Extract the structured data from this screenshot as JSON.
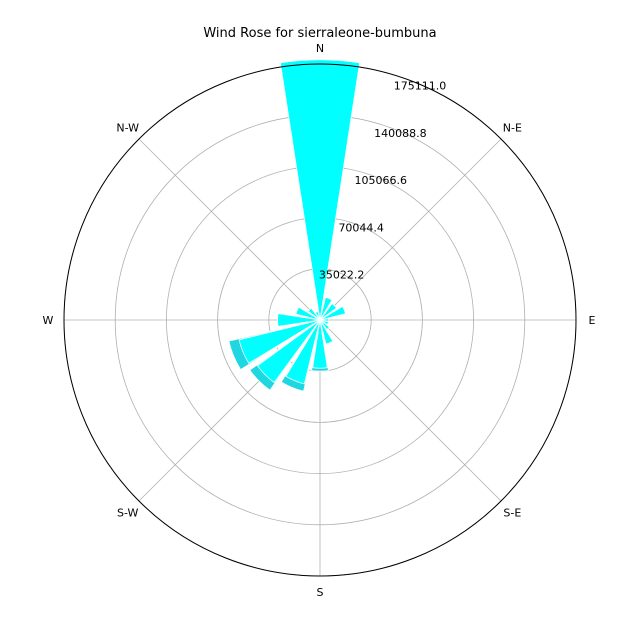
{
  "chart_data": {
    "type": "windrose",
    "title": "Wind Rose for sierraleone-bumbuna",
    "directions": [
      "N",
      "N-E",
      "E",
      "S-E",
      "S",
      "S-W",
      "W",
      "N-W"
    ],
    "radial_ticks": [
      "35022.2",
      "70044.4",
      "105066.6",
      "140088.8",
      "175111.0"
    ],
    "rmax": 175111.0,
    "grid": true,
    "sectors": [
      {
        "angle": 0.0,
        "value": 178000,
        "color": "#00ffff"
      },
      {
        "angle": 22.5,
        "value": 16000,
        "color": "#00ffff"
      },
      {
        "angle": 45.0,
        "value": 14000,
        "color": "#00ffff"
      },
      {
        "angle": 67.5,
        "value": 18000,
        "color": "#00ffff"
      },
      {
        "angle": 90.0,
        "value": 6000,
        "color": "#00ffff"
      },
      {
        "angle": 112.5,
        "value": 6000,
        "color": "#00ffff"
      },
      {
        "angle": 135.0,
        "value": 8000,
        "color": "#00ffff"
      },
      {
        "angle": 157.5,
        "value": 17000,
        "color": "#00ffff"
      },
      {
        "angle": 180.0,
        "value": 33000,
        "color": "#00ffff"
      },
      {
        "angle": 202.5,
        "value": 45000,
        "color": "#00ffff"
      },
      {
        "angle": 225.0,
        "value": 53000,
        "color": "#00ffff"
      },
      {
        "angle": 247.5,
        "value": 57000,
        "color": "#00ffff"
      },
      {
        "angle": 270.0,
        "value": 29000,
        "color": "#00ffff"
      },
      {
        "angle": 292.5,
        "value": 17000,
        "color": "#00ffff"
      },
      {
        "angle": 315.0,
        "value": 10000,
        "color": "#00ffff"
      },
      {
        "angle": 337.5,
        "value": 6000,
        "color": "#00ffff"
      }
    ],
    "bins": [
      {
        "angle": 202.5,
        "value": 50000,
        "color": "#1fd7e0"
      },
      {
        "angle": 225.0,
        "value": 59000,
        "color": "#1fd7e0"
      },
      {
        "angle": 247.5,
        "value": 64000,
        "color": "#1fd7e0"
      },
      {
        "angle": 180.0,
        "value": 35000,
        "color": "#1fd7e0"
      }
    ]
  }
}
